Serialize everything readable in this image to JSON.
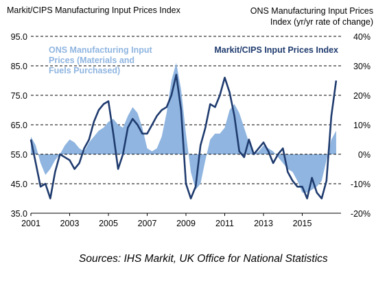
{
  "chart_data": {
    "type": "line",
    "left_axis_title": "Markit/CIPS Manufacturing Input Prices Index",
    "right_axis_title_lines": [
      "ONS Manufacturing Input Prices",
      "Index (yr/yr rate of change)"
    ],
    "source": "Sources: IHS Markit, UK Office for National Statistics",
    "y_left": {
      "lim": [
        35,
        95
      ],
      "ticks": [
        "35.0",
        "45.0",
        "55.0",
        "65.0",
        "75.0",
        "85.0",
        "95.0"
      ]
    },
    "y_right": {
      "lim": [
        -20,
        40
      ],
      "ticks": [
        "-20%",
        "-10%",
        "0%",
        "10%",
        "20%",
        "30%",
        "40%"
      ]
    },
    "x": {
      "lim": [
        2001,
        2017
      ],
      "ticks": [
        "2001",
        "2003",
        "2005",
        "2007",
        "2009",
        "2011",
        "2013",
        "2015"
      ]
    },
    "grid": "dashed horizontal",
    "series": [
      {
        "name": "ONS Manufacturing Input Prices (Materials and Fuels Purchased)",
        "label_lines": [
          "ONS Manufacturing Input",
          "Prices (Materials and",
          "Fuels Purchased)"
        ],
        "kind": "area",
        "axis": "right",
        "color": "#8fb5e0",
        "x": [
          2001.0,
          2001.25,
          2001.5,
          2001.75,
          2002.0,
          2002.25,
          2002.5,
          2002.75,
          2003.0,
          2003.25,
          2003.5,
          2003.75,
          2004.0,
          2004.25,
          2004.5,
          2004.75,
          2005.0,
          2005.25,
          2005.5,
          2005.75,
          2006.0,
          2006.25,
          2006.5,
          2006.75,
          2007.0,
          2007.25,
          2007.5,
          2007.75,
          2008.0,
          2008.25,
          2008.5,
          2008.75,
          2009.0,
          2009.25,
          2009.5,
          2009.75,
          2010.0,
          2010.25,
          2010.5,
          2010.75,
          2011.0,
          2011.25,
          2011.5,
          2011.75,
          2012.0,
          2012.25,
          2012.5,
          2012.75,
          2013.0,
          2013.25,
          2013.5,
          2013.75,
          2014.0,
          2014.25,
          2014.5,
          2014.75,
          2015.0,
          2015.25,
          2015.5,
          2015.75,
          2016.0,
          2016.25,
          2016.5,
          2016.75
        ],
        "values": [
          6,
          3,
          -3,
          -7,
          -5,
          -2,
          0,
          3,
          5,
          4,
          2,
          1,
          4,
          6,
          8,
          9,
          11,
          12,
          10,
          9,
          13,
          16,
          14,
          9,
          2,
          1,
          2,
          6,
          14,
          25,
          31,
          22,
          7,
          -6,
          -12,
          -10,
          -2,
          5,
          7,
          7,
          9,
          15,
          17,
          14,
          9,
          4,
          0,
          1,
          3,
          2,
          1,
          -1,
          -3,
          -5,
          -6,
          -9,
          -13,
          -13,
          -12,
          -11,
          -9,
          -2,
          5,
          8
        ]
      },
      {
        "name": "Markit/CIPS Input Prices Index",
        "kind": "line",
        "axis": "left",
        "color": "#1f3b6e",
        "x": [
          2001.0,
          2001.25,
          2001.5,
          2001.75,
          2002.0,
          2002.25,
          2002.5,
          2002.75,
          2003.0,
          2003.25,
          2003.5,
          2003.75,
          2004.0,
          2004.25,
          2004.5,
          2004.75,
          2005.0,
          2005.25,
          2005.5,
          2005.75,
          2006.0,
          2006.25,
          2006.5,
          2006.75,
          2007.0,
          2007.25,
          2007.5,
          2007.75,
          2008.0,
          2008.25,
          2008.5,
          2008.75,
          2009.0,
          2009.25,
          2009.5,
          2009.75,
          2010.0,
          2010.25,
          2010.5,
          2010.75,
          2011.0,
          2011.25,
          2011.5,
          2011.75,
          2012.0,
          2012.25,
          2012.5,
          2012.75,
          2013.0,
          2013.25,
          2013.5,
          2013.75,
          2014.0,
          2014.25,
          2014.5,
          2014.75,
          2015.0,
          2015.25,
          2015.5,
          2015.75,
          2016.0,
          2016.25,
          2016.5,
          2016.75
        ],
        "values": [
          60,
          52,
          44,
          45,
          40,
          49,
          55,
          54,
          53,
          50,
          52,
          57,
          60,
          66,
          70,
          72,
          73,
          62,
          50,
          55,
          64,
          67,
          65,
          62,
          62,
          65,
          68,
          70,
          71,
          75,
          82,
          70,
          45,
          40,
          44,
          58,
          64,
          72,
          71,
          75,
          81,
          76,
          68,
          56,
          54,
          60,
          55,
          57,
          59,
          56,
          52,
          55,
          57,
          49,
          46,
          44,
          44,
          40,
          47,
          42,
          40,
          46,
          68,
          80
        ]
      }
    ]
  }
}
